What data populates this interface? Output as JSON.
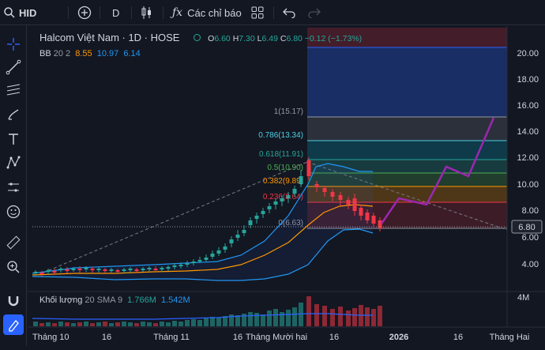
{
  "topbar": {
    "symbol": "HID",
    "interval": "D",
    "indicators_label": "Các chỉ báo"
  },
  "legend": {
    "title": "Halcom Việt Nam · 1D · HOSE",
    "o_label": "O",
    "o_value": "6.60",
    "h_label": "H",
    "h_value": "7.30",
    "l_label": "L",
    "l_value": "6.49",
    "c_label": "C",
    "c_value": "6.80",
    "change": "−0.12 (−1.73%)",
    "bb_label": "BB",
    "bb_params": "20 2",
    "bb_mid": "8.55",
    "bb_upper": "10.97",
    "bb_lower": "6.14",
    "vol_label": "Khối lượng",
    "vol_params": "20 SMA 9",
    "vol_value": "1.766M",
    "vol_sma": "1.542M"
  },
  "price_axis": {
    "ticks": [
      "20.00",
      "18.00",
      "16.00",
      "14.00",
      "12.00",
      "10.00",
      "8.00",
      "6.00",
      "4.00"
    ],
    "current": "6.80",
    "volume_tick": "4M"
  },
  "time_axis": {
    "ticks": [
      "Tháng 10",
      "16",
      "Tháng 11",
      "16",
      "Tháng Mười hai",
      "16",
      "2026",
      "16",
      "Tháng Hai"
    ]
  },
  "fib_levels": [
    {
      "label": "1(15.17)",
      "color": "#9598a1"
    },
    {
      "label": "0.786(13.34)",
      "color": "#4dd0e1"
    },
    {
      "label": "0.618(11.91)",
      "color": "#26a69a"
    },
    {
      "label": "0.5(10.90)",
      "color": "#4caf50"
    },
    {
      "label": "0.382(9.89)",
      "color": "#ff9800"
    },
    {
      "label": "0.236(8.64)",
      "color": "#f23645"
    },
    {
      "label": "0(6.63)",
      "color": "#9598a1"
    }
  ],
  "colors": {
    "up": "#26a69a",
    "down": "#f23645",
    "accent": "#2962ff",
    "projection": "#9c27b0"
  },
  "icons": [
    "crosshair-icon",
    "trendline-icon",
    "fib-icon",
    "brush-icon",
    "text-icon",
    "pattern-icon",
    "measure-icon",
    "emoji-icon",
    "ruler-icon",
    "zoom-icon",
    "magnet-icon",
    "lock-draw-icon"
  ]
}
